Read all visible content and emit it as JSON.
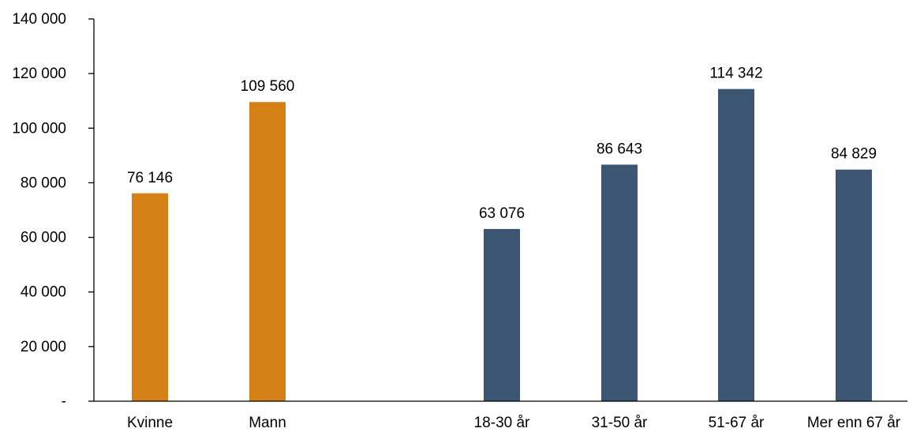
{
  "chart_data": {
    "type": "bar",
    "categories": [
      "Kvinne",
      "Mann",
      "18-30 år",
      "31-50 år",
      "51-67 år",
      "Mer enn 67 år"
    ],
    "values": [
      76146,
      109560,
      63076,
      86643,
      114342,
      84829
    ],
    "data_labels": [
      "76 146",
      "109 560",
      "63 076",
      "86 643",
      "114 342",
      "84 829"
    ],
    "groups": [
      {
        "categories": [
          "Kvinne",
          "Mann"
        ],
        "color": "#D57F17"
      },
      {
        "categories": [
          "18-30 år",
          "31-50 år",
          "51-67 år",
          "Mer enn 67 år"
        ],
        "color": "#3B5573"
      }
    ],
    "title": "",
    "xlabel": "",
    "ylabel": "",
    "ylim": [
      0,
      140000
    ],
    "yticks": [
      0,
      20000,
      40000,
      60000,
      80000,
      100000,
      120000,
      140000
    ],
    "ytick_labels": [
      "-",
      "20 000",
      "40 000",
      "60 000",
      "80 000",
      "100 000",
      "120 000",
      "140 000"
    ],
    "grid": false,
    "legend": "none"
  }
}
